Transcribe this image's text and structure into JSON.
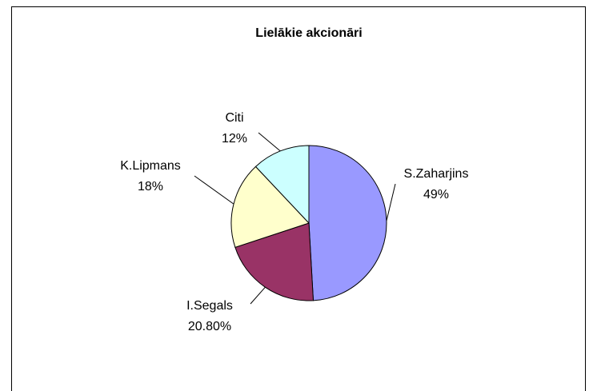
{
  "chart_data": {
    "type": "pie",
    "title": "Lielākie akcionāri",
    "categories": [
      "S.Zaharjins",
      "I.Segals",
      "K.Lipmans",
      "Citi"
    ],
    "values": [
      49,
      20.8,
      18,
      12
    ],
    "value_labels": [
      "49%",
      "20.80%",
      "18%",
      "12%"
    ],
    "colors": [
      "#9999ff",
      "#993366",
      "#ffffcc",
      "#ccffff"
    ]
  }
}
